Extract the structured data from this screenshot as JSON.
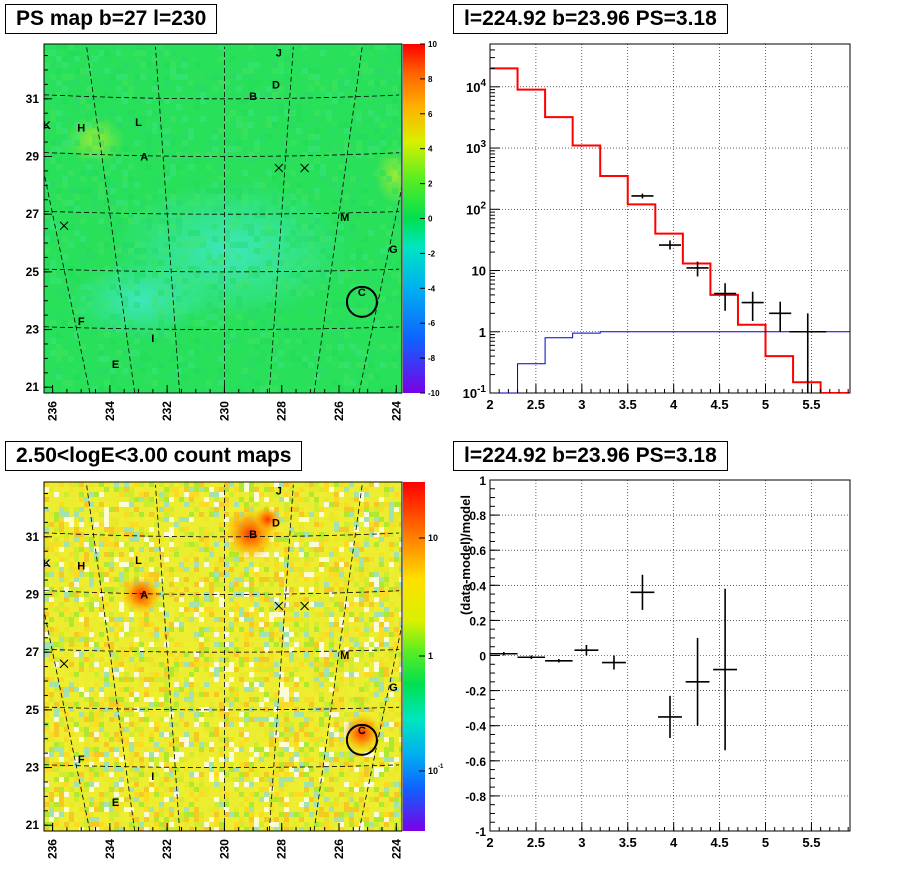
{
  "panels": {
    "tl": {
      "title": "PS map b=27 l=230"
    },
    "tr": {
      "title": "l=224.92 b=23.96 PS=3.18"
    },
    "bl": {
      "title": "2.50<logE<3.00 count maps"
    },
    "br": {
      "title": "l=224.92 b=23.96 PS=3.18"
    }
  },
  "colors": {
    "data": "#000000",
    "model": "#ff0000",
    "ps_component": "#0000cc"
  },
  "chart_data": [
    {
      "type": "heatmap",
      "title": "PS map b=27 l=230",
      "xlim": [
        236.3,
        223.8
      ],
      "ylim": [
        20.8,
        32.9
      ],
      "x_ticks": [
        "236",
        "234",
        "232",
        "230",
        "228",
        "226",
        "224"
      ],
      "y_ticks": [
        "21",
        "23",
        "25",
        "27",
        "29",
        "31"
      ],
      "colorbar": {
        "range": [
          -10,
          10
        ],
        "ticks": [
          "-10",
          "-8",
          "-6",
          "-4",
          "-2",
          "0",
          "2",
          "4",
          "6",
          "8",
          "10"
        ]
      },
      "sources": [
        {
          "label": "J",
          "l": 228.1,
          "b": 32.6
        },
        {
          "label": "D",
          "l": 228.2,
          "b": 31.5
        },
        {
          "label": "B",
          "l": 229.0,
          "b": 31.1
        },
        {
          "label": "K",
          "l": 236.2,
          "b": 30.1
        },
        {
          "label": "H",
          "l": 235.0,
          "b": 30.0
        },
        {
          "label": "L",
          "l": 233.0,
          "b": 30.2
        },
        {
          "label": "A",
          "l": 232.8,
          "b": 29.0
        },
        {
          "label": "M",
          "l": 225.8,
          "b": 26.9
        },
        {
          "label": "G",
          "l": 224.1,
          "b": 25.8
        },
        {
          "label": "C",
          "l": 225.2,
          "b": 24.3
        },
        {
          "label": "F",
          "l": 235.0,
          "b": 23.3
        },
        {
          "label": "I",
          "l": 232.5,
          "b": 22.7
        },
        {
          "label": "E",
          "l": 233.8,
          "b": 21.8
        }
      ],
      "crosses": [
        {
          "l": 228.1,
          "b": 28.6
        },
        {
          "l": 227.2,
          "b": 28.6
        },
        {
          "l": 235.6,
          "b": 26.6
        }
      ],
      "circle": {
        "l": 225.2,
        "b": 23.96
      }
    },
    {
      "type": "line",
      "title": "l=224.92 b=23.96 PS=3.18",
      "y_scale": "log",
      "xlim": [
        2,
        5.92
      ],
      "ylim": [
        0.1,
        50000
      ],
      "x_ticks": [
        "2",
        "2.5",
        "3",
        "3.5",
        "4",
        "4.5",
        "5",
        "5.5"
      ],
      "y_ticks": [
        "10^-1",
        "1",
        "10",
        "10^2",
        "10^3",
        "10^4"
      ],
      "bin_edges": [
        2.0,
        2.3,
        2.6,
        2.9,
        3.2,
        3.5,
        3.8,
        4.1,
        4.4,
        4.7,
        5.0,
        5.3,
        5.6,
        5.92
      ],
      "series": [
        {
          "style": "step",
          "color": "#ff0000",
          "values": [
            20000,
            9000,
            3200,
            1100,
            350,
            120,
            40,
            13,
            4,
            1.3,
            0.4,
            0.15,
            0.1
          ]
        },
        {
          "style": "step",
          "color": "#0000cc",
          "values": [
            0.1,
            0.3,
            0.8,
            0.95,
            1.0,
            1.0,
            1.0,
            1.0,
            1.0,
            1.0,
            1.0,
            1.0,
            1.0
          ]
        },
        {
          "style": "errorbar",
          "color": "#000000",
          "points": [
            {
              "x": 3.66,
              "y": 165,
              "xerr": 0.12,
              "ylo": 150,
              "yhi": 180
            },
            {
              "x": 3.96,
              "y": 26,
              "xerr": 0.12,
              "ylo": 22,
              "yhi": 31
            },
            {
              "x": 4.26,
              "y": 11,
              "xerr": 0.12,
              "ylo": 8,
              "yhi": 14
            },
            {
              "x": 4.56,
              "y": 4.2,
              "xerr": 0.12,
              "ylo": 2.2,
              "yhi": 6.2
            },
            {
              "x": 4.86,
              "y": 3,
              "xerr": 0.12,
              "ylo": 1.5,
              "yhi": 4.5
            },
            {
              "x": 5.16,
              "y": 2,
              "xerr": 0.12,
              "ylo": 1,
              "yhi": 3.1
            },
            {
              "x": 5.46,
              "y": 1.0,
              "xerr": 0.2,
              "ylo": 0.1,
              "yhi": 2
            }
          ]
        }
      ]
    },
    {
      "type": "heatmap",
      "title": "2.50<logE<3.00 count maps",
      "xlim": [
        236.3,
        223.8
      ],
      "ylim": [
        20.8,
        32.9
      ],
      "x_ticks": [
        "236",
        "234",
        "232",
        "230",
        "228",
        "226",
        "224"
      ],
      "y_ticks": [
        "21",
        "23",
        "25",
        "27",
        "29",
        "31"
      ],
      "colorbar": {
        "scale": "log",
        "ticks": [
          "10",
          "1",
          "10^-1"
        ]
      },
      "hotspots": [
        {
          "l": 232.9,
          "b": 29.0
        },
        {
          "l": 229.1,
          "b": 31.1
        },
        {
          "l": 228.5,
          "b": 31.6
        },
        {
          "l": 225.2,
          "b": 24.2
        }
      ]
    },
    {
      "type": "scatter",
      "title": "l=224.92 b=23.96 PS=3.18",
      "ylabel": "(data-model)/model",
      "xlim": [
        2,
        5.92
      ],
      "ylim": [
        -1,
        1
      ],
      "x_ticks": [
        "2",
        "2.5",
        "3",
        "3.5",
        "4",
        "4.5",
        "5",
        "5.5"
      ],
      "y_ticks": [
        "-1",
        "-0.8",
        "-0.6",
        "-0.4",
        "-0.2",
        "0",
        "0.2",
        "0.4",
        "0.6",
        "0.8",
        "1"
      ],
      "points": [
        {
          "x": 2.15,
          "y": 0.01,
          "xerr": 0.15,
          "yerr": 0.01
        },
        {
          "x": 2.45,
          "y": -0.01,
          "xerr": 0.15,
          "yerr": 0.01
        },
        {
          "x": 2.75,
          "y": -0.03,
          "xerr": 0.15,
          "yerr": 0.01
        },
        {
          "x": 3.05,
          "y": 0.03,
          "xerr": 0.13,
          "yerr": 0.03
        },
        {
          "x": 3.35,
          "y": -0.04,
          "xerr": 0.13,
          "yerr": 0.04
        },
        {
          "x": 3.66,
          "y": 0.36,
          "xerr": 0.13,
          "yerr": 0.1
        },
        {
          "x": 3.96,
          "y": -0.35,
          "xerr": 0.13,
          "yerr": 0.12
        },
        {
          "x": 4.26,
          "y": -0.15,
          "xerr": 0.13,
          "yerr": 0.25
        },
        {
          "x": 4.56,
          "y": -0.08,
          "xerr": 0.13,
          "yerr": 0.46
        }
      ]
    }
  ]
}
